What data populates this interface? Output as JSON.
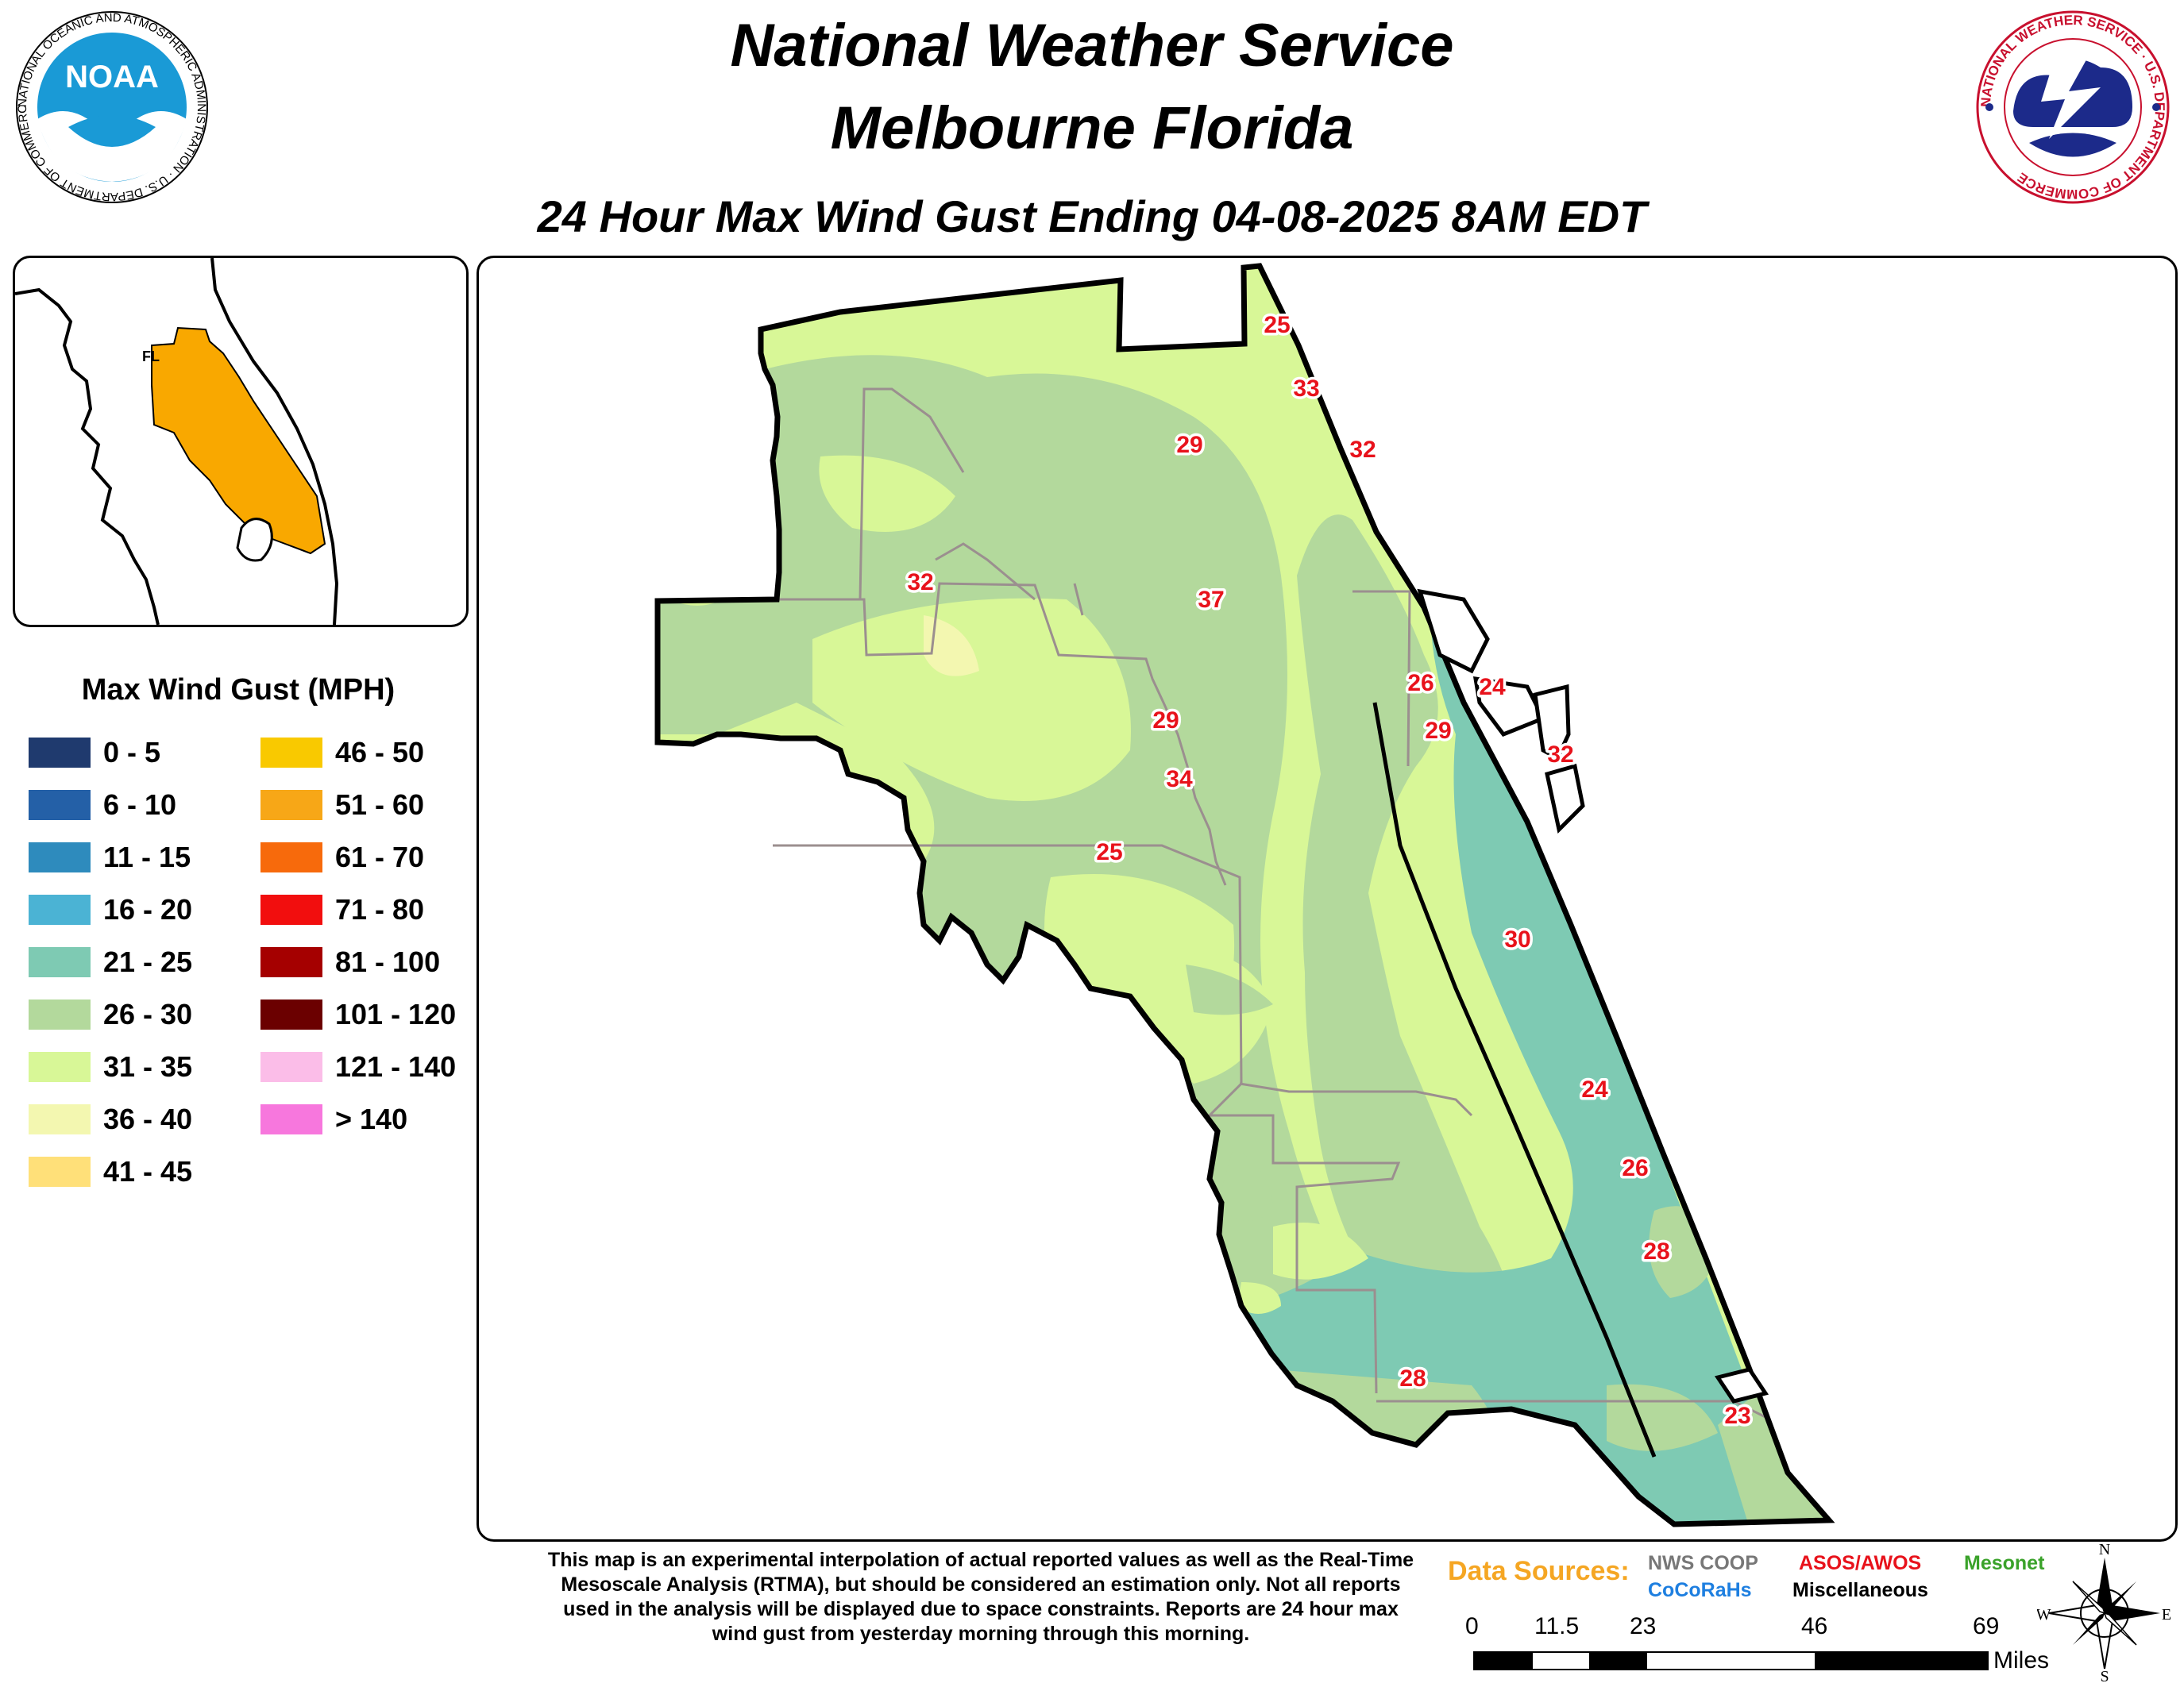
{
  "header": {
    "title_line1": "National Weather Service",
    "title_line2": "Melbourne Florida",
    "subtitle": "24 Hour Max Wind Gust Ending 04-08-2025 8AM EDT"
  },
  "logos": {
    "noaa": {
      "center_text": "NOAA",
      "ring_text": "NATIONAL OCEANIC AND ATMOSPHERIC ADMINISTRATION · U.S. DEPARTMENT OF COMMERCE"
    },
    "nws": {
      "ring_text": "NATIONAL WEATHER SERVICE · U.S. DEPARTMENT OF COMMERCE"
    }
  },
  "inset": {
    "state_label": "FL",
    "highlight_color": "#f9a800"
  },
  "legend": {
    "title": "Max Wind Gust (MPH)",
    "items": [
      {
        "label": "0 - 5",
        "color": "#1f3a6e"
      },
      {
        "label": "6 - 10",
        "color": "#2460a7"
      },
      {
        "label": "11 - 15",
        "color": "#2e8bbd"
      },
      {
        "label": "16 - 20",
        "color": "#4bb3d4"
      },
      {
        "label": "21 - 25",
        "color": "#7ecab3"
      },
      {
        "label": "26 - 30",
        "color": "#b3d99c"
      },
      {
        "label": "31 - 35",
        "color": "#d8f797"
      },
      {
        "label": "36 - 40",
        "color": "#f3f7b0"
      },
      {
        "label": "41 - 45",
        "color": "#ffe079"
      },
      {
        "label": "46 - 50",
        "color": "#f9c900"
      },
      {
        "label": "51 - 60",
        "color": "#f7a717"
      },
      {
        "label": "61 - 70",
        "color": "#f76a0c"
      },
      {
        "label": "71 - 80",
        "color": "#f20e0e"
      },
      {
        "label": "81 - 100",
        "color": "#a50000"
      },
      {
        "label": "101 - 120",
        "color": "#6b0000"
      },
      {
        "label": "121 - 140",
        "color": "#fbbde8"
      },
      {
        "label": "> 140",
        "color": "#f777dd"
      }
    ]
  },
  "observations": [
    "25",
    "33",
    "32",
    "29",
    "32",
    "37",
    "26",
    "24",
    "29",
    "29",
    "32",
    "34",
    "25",
    "30",
    "24",
    "26",
    "28",
    "28",
    "23"
  ],
  "disclaimer": "This map is an experimental interpolation of actual reported values as well as the Real-Time Mesoscale Analysis (RTMA), but should be considered an estimation only. Not all reports used in the analysis will be displayed due to space constraints. Reports are 24 hour max wind gust from yesterday morning through this morning.",
  "data_sources": {
    "label": "Data Sources:",
    "nws_coop": "NWS COOP",
    "asos_awos": "ASOS/AWOS",
    "mesonet": "Mesonet",
    "cocorahs": "CoCoRaHs",
    "misc": "Miscellaneous",
    "colors": {
      "nws_coop": "#777777",
      "asos_awos": "#e8121b",
      "mesonet": "#3aa22a",
      "cocorahs": "#1e7fe0",
      "misc": "#000000"
    }
  },
  "scale_bar": {
    "ticks": [
      "0",
      "11.5",
      "23",
      "46",
      "69"
    ],
    "unit": "Miles"
  },
  "compass": {
    "n": "N",
    "s": "S",
    "e": "E",
    "w": "W"
  }
}
